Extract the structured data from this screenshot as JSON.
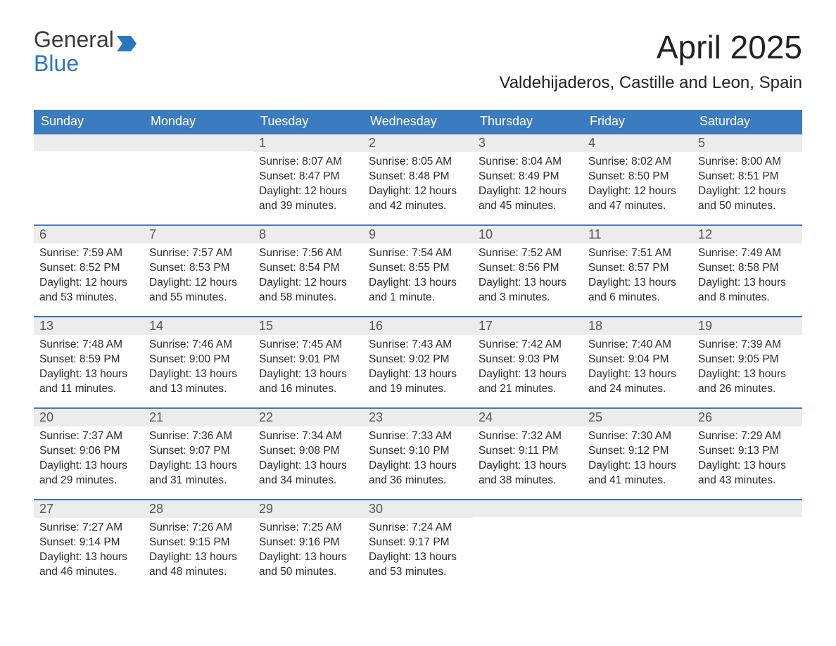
{
  "brand": {
    "word1": "General",
    "word2": "Blue"
  },
  "colors": {
    "header_bg": "#3b7bbf",
    "header_text": "#ffffff",
    "daynum_bg": "#ececec",
    "daynum_text": "#555555",
    "body_text": "#2b2b2b",
    "rule": "#3b7bbf",
    "brand_blue": "#2a77c0",
    "page_bg": "#ffffff"
  },
  "typography": {
    "month_title_fontsize": 46,
    "location_fontsize": 24,
    "dow_fontsize": 18,
    "daynum_fontsize": 18,
    "body_fontsize": 15.5
  },
  "title": "April 2025",
  "location": "Valdehijaderos, Castille and Leon, Spain",
  "days_of_week": [
    "Sunday",
    "Monday",
    "Tuesday",
    "Wednesday",
    "Thursday",
    "Friday",
    "Saturday"
  ],
  "weeks": [
    [
      {
        "n": "",
        "sr": "",
        "ss": "",
        "dl1": "",
        "dl2": ""
      },
      {
        "n": "",
        "sr": "",
        "ss": "",
        "dl1": "",
        "dl2": ""
      },
      {
        "n": "1",
        "sr": "Sunrise: 8:07 AM",
        "ss": "Sunset: 8:47 PM",
        "dl1": "Daylight: 12 hours",
        "dl2": "and 39 minutes."
      },
      {
        "n": "2",
        "sr": "Sunrise: 8:05 AM",
        "ss": "Sunset: 8:48 PM",
        "dl1": "Daylight: 12 hours",
        "dl2": "and 42 minutes."
      },
      {
        "n": "3",
        "sr": "Sunrise: 8:04 AM",
        "ss": "Sunset: 8:49 PM",
        "dl1": "Daylight: 12 hours",
        "dl2": "and 45 minutes."
      },
      {
        "n": "4",
        "sr": "Sunrise: 8:02 AM",
        "ss": "Sunset: 8:50 PM",
        "dl1": "Daylight: 12 hours",
        "dl2": "and 47 minutes."
      },
      {
        "n": "5",
        "sr": "Sunrise: 8:00 AM",
        "ss": "Sunset: 8:51 PM",
        "dl1": "Daylight: 12 hours",
        "dl2": "and 50 minutes."
      }
    ],
    [
      {
        "n": "6",
        "sr": "Sunrise: 7:59 AM",
        "ss": "Sunset: 8:52 PM",
        "dl1": "Daylight: 12 hours",
        "dl2": "and 53 minutes."
      },
      {
        "n": "7",
        "sr": "Sunrise: 7:57 AM",
        "ss": "Sunset: 8:53 PM",
        "dl1": "Daylight: 12 hours",
        "dl2": "and 55 minutes."
      },
      {
        "n": "8",
        "sr": "Sunrise: 7:56 AM",
        "ss": "Sunset: 8:54 PM",
        "dl1": "Daylight: 12 hours",
        "dl2": "and 58 minutes."
      },
      {
        "n": "9",
        "sr": "Sunrise: 7:54 AM",
        "ss": "Sunset: 8:55 PM",
        "dl1": "Daylight: 13 hours",
        "dl2": "and 1 minute."
      },
      {
        "n": "10",
        "sr": "Sunrise: 7:52 AM",
        "ss": "Sunset: 8:56 PM",
        "dl1": "Daylight: 13 hours",
        "dl2": "and 3 minutes."
      },
      {
        "n": "11",
        "sr": "Sunrise: 7:51 AM",
        "ss": "Sunset: 8:57 PM",
        "dl1": "Daylight: 13 hours",
        "dl2": "and 6 minutes."
      },
      {
        "n": "12",
        "sr": "Sunrise: 7:49 AM",
        "ss": "Sunset: 8:58 PM",
        "dl1": "Daylight: 13 hours",
        "dl2": "and 8 minutes."
      }
    ],
    [
      {
        "n": "13",
        "sr": "Sunrise: 7:48 AM",
        "ss": "Sunset: 8:59 PM",
        "dl1": "Daylight: 13 hours",
        "dl2": "and 11 minutes."
      },
      {
        "n": "14",
        "sr": "Sunrise: 7:46 AM",
        "ss": "Sunset: 9:00 PM",
        "dl1": "Daylight: 13 hours",
        "dl2": "and 13 minutes."
      },
      {
        "n": "15",
        "sr": "Sunrise: 7:45 AM",
        "ss": "Sunset: 9:01 PM",
        "dl1": "Daylight: 13 hours",
        "dl2": "and 16 minutes."
      },
      {
        "n": "16",
        "sr": "Sunrise: 7:43 AM",
        "ss": "Sunset: 9:02 PM",
        "dl1": "Daylight: 13 hours",
        "dl2": "and 19 minutes."
      },
      {
        "n": "17",
        "sr": "Sunrise: 7:42 AM",
        "ss": "Sunset: 9:03 PM",
        "dl1": "Daylight: 13 hours",
        "dl2": "and 21 minutes."
      },
      {
        "n": "18",
        "sr": "Sunrise: 7:40 AM",
        "ss": "Sunset: 9:04 PM",
        "dl1": "Daylight: 13 hours",
        "dl2": "and 24 minutes."
      },
      {
        "n": "19",
        "sr": "Sunrise: 7:39 AM",
        "ss": "Sunset: 9:05 PM",
        "dl1": "Daylight: 13 hours",
        "dl2": "and 26 minutes."
      }
    ],
    [
      {
        "n": "20",
        "sr": "Sunrise: 7:37 AM",
        "ss": "Sunset: 9:06 PM",
        "dl1": "Daylight: 13 hours",
        "dl2": "and 29 minutes."
      },
      {
        "n": "21",
        "sr": "Sunrise: 7:36 AM",
        "ss": "Sunset: 9:07 PM",
        "dl1": "Daylight: 13 hours",
        "dl2": "and 31 minutes."
      },
      {
        "n": "22",
        "sr": "Sunrise: 7:34 AM",
        "ss": "Sunset: 9:08 PM",
        "dl1": "Daylight: 13 hours",
        "dl2": "and 34 minutes."
      },
      {
        "n": "23",
        "sr": "Sunrise: 7:33 AM",
        "ss": "Sunset: 9:10 PM",
        "dl1": "Daylight: 13 hours",
        "dl2": "and 36 minutes."
      },
      {
        "n": "24",
        "sr": "Sunrise: 7:32 AM",
        "ss": "Sunset: 9:11 PM",
        "dl1": "Daylight: 13 hours",
        "dl2": "and 38 minutes."
      },
      {
        "n": "25",
        "sr": "Sunrise: 7:30 AM",
        "ss": "Sunset: 9:12 PM",
        "dl1": "Daylight: 13 hours",
        "dl2": "and 41 minutes."
      },
      {
        "n": "26",
        "sr": "Sunrise: 7:29 AM",
        "ss": "Sunset: 9:13 PM",
        "dl1": "Daylight: 13 hours",
        "dl2": "and 43 minutes."
      }
    ],
    [
      {
        "n": "27",
        "sr": "Sunrise: 7:27 AM",
        "ss": "Sunset: 9:14 PM",
        "dl1": "Daylight: 13 hours",
        "dl2": "and 46 minutes."
      },
      {
        "n": "28",
        "sr": "Sunrise: 7:26 AM",
        "ss": "Sunset: 9:15 PM",
        "dl1": "Daylight: 13 hours",
        "dl2": "and 48 minutes."
      },
      {
        "n": "29",
        "sr": "Sunrise: 7:25 AM",
        "ss": "Sunset: 9:16 PM",
        "dl1": "Daylight: 13 hours",
        "dl2": "and 50 minutes."
      },
      {
        "n": "30",
        "sr": "Sunrise: 7:24 AM",
        "ss": "Sunset: 9:17 PM",
        "dl1": "Daylight: 13 hours",
        "dl2": "and 53 minutes."
      },
      {
        "n": "",
        "sr": "",
        "ss": "",
        "dl1": "",
        "dl2": ""
      },
      {
        "n": "",
        "sr": "",
        "ss": "",
        "dl1": "",
        "dl2": ""
      },
      {
        "n": "",
        "sr": "",
        "ss": "",
        "dl1": "",
        "dl2": ""
      }
    ]
  ]
}
